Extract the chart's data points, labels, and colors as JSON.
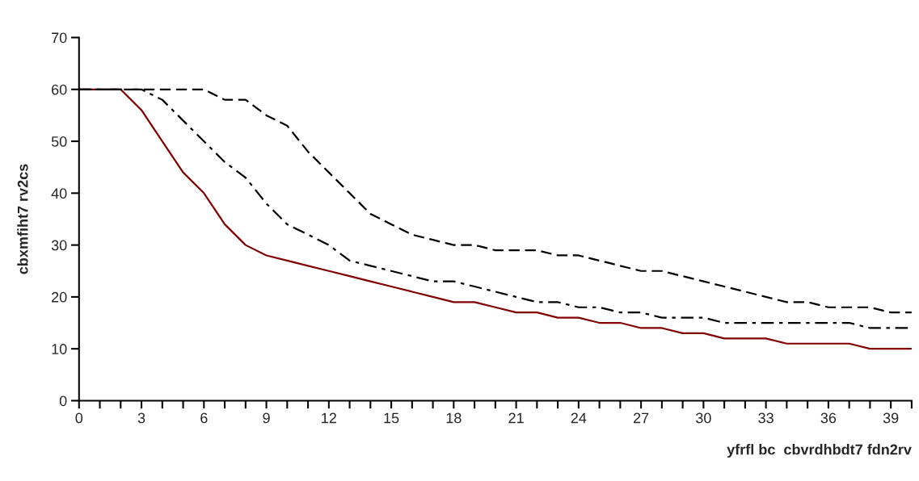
{
  "chart_data": {
    "type": "line",
    "xlabel": "yfrfl bc  cbvrdhbdt7 fdn2rv",
    "ylabel": "cbxmfiht7 rv2cs",
    "x": [
      0,
      1,
      2,
      3,
      4,
      5,
      6,
      7,
      8,
      9,
      10,
      11,
      12,
      13,
      14,
      15,
      16,
      17,
      18,
      19,
      20,
      21,
      22,
      23,
      24,
      25,
      26,
      27,
      28,
      29,
      30,
      31,
      32,
      33,
      34,
      35,
      36,
      37,
      38,
      39,
      40
    ],
    "series": [
      {
        "color": "#800000",
        "line_style": "solid",
        "values": [
          60,
          60,
          60,
          56,
          50,
          44,
          40,
          34,
          30,
          28,
          27,
          26,
          25,
          24,
          23,
          22,
          21,
          20,
          19,
          19,
          18,
          17,
          17,
          16,
          16,
          15,
          15,
          14,
          14,
          13,
          13,
          12,
          12,
          12,
          11,
          11,
          11,
          11,
          10,
          10,
          10
        ]
      },
      {
        "color": "#000000",
        "line_style": "dashed",
        "values": [
          60,
          60,
          60,
          60,
          60,
          60,
          60,
          58,
          58,
          55,
          53,
          48,
          44,
          40,
          36,
          34,
          32,
          31,
          30,
          30,
          29,
          29,
          29,
          28,
          28,
          27,
          26,
          25,
          25,
          24,
          23,
          22,
          21,
          20,
          19,
          19,
          18,
          18,
          18,
          17,
          17
        ]
      },
      {
        "color": "#000000",
        "line_style": "dashdot",
        "values": [
          60,
          60,
          60,
          60,
          58,
          54,
          50,
          46,
          43,
          38,
          34,
          32,
          30,
          27,
          26,
          25,
          24,
          23,
          23,
          22,
          21,
          20,
          19,
          19,
          18,
          18,
          17,
          17,
          16,
          16,
          16,
          15,
          15,
          15,
          15,
          15,
          15,
          15,
          14,
          14,
          14
        ]
      }
    ],
    "xlim": [
      0,
      40
    ],
    "ylim": [
      0,
      70
    ],
    "xticks": [
      0,
      {
        "value": 1,
        "label": null
      },
      {
        "value": 2,
        "label": null
      },
      3,
      {
        "value": 4,
        "label": null
      },
      {
        "value": 5,
        "label": null
      },
      6,
      {
        "value": 7,
        "label": null
      },
      {
        "value": 8,
        "label": null
      },
      9,
      {
        "value": 10,
        "label": null
      },
      {
        "value": 11,
        "label": null
      },
      12,
      {
        "value": 13,
        "label": null
      },
      {
        "value": 14,
        "label": null
      },
      15,
      {
        "value": 16,
        "label": null
      },
      {
        "value": 17,
        "label": null
      },
      18,
      {
        "value": 19,
        "label": null
      },
      {
        "value": 20,
        "label": null
      },
      21,
      {
        "value": 22,
        "label": null
      },
      {
        "value": 23,
        "label": null
      },
      24,
      {
        "value": 25,
        "label": null
      },
      {
        "value": 26,
        "label": null
      },
      27,
      {
        "value": 28,
        "label": null
      },
      {
        "value": 29,
        "label": null
      },
      30,
      {
        "value": 31,
        "label": null
      },
      {
        "value": 32,
        "label": null
      },
      33,
      {
        "value": 34,
        "label": null
      },
      {
        "value": 35,
        "label": null
      },
      36,
      {
        "value": 37,
        "label": null
      },
      {
        "value": 38,
        "label": null
      },
      39,
      {
        "value": 40,
        "label": null
      }
    ],
    "yticks": [
      0,
      10,
      20,
      30,
      40,
      50,
      60,
      70
    ],
    "grid": false,
    "legend": false,
    "marker": "none"
  }
}
